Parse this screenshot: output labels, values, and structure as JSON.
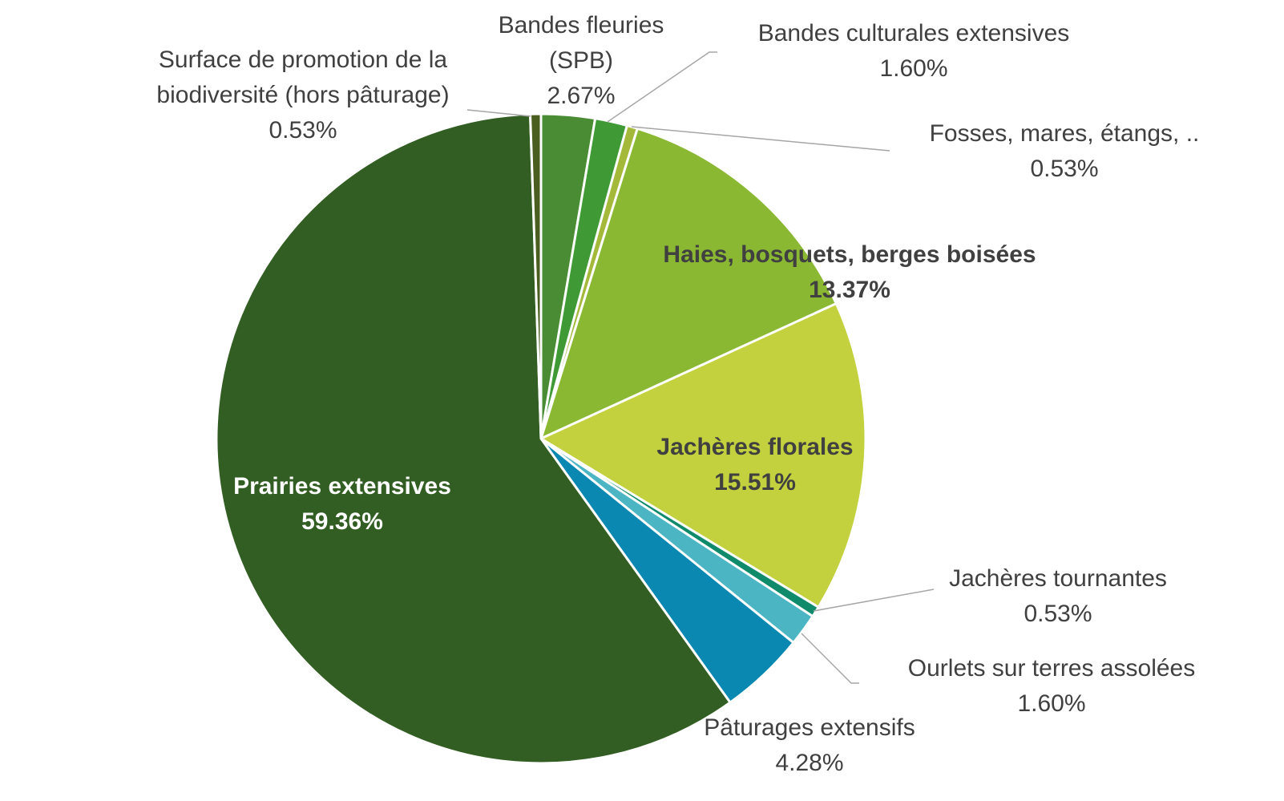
{
  "chart_data": {
    "type": "pie",
    "categories": [
      "Bandes fleuries (SPB)",
      "Bandes culturales extensives",
      "Fosses, mares, étangs, ..",
      "Haies, bosquets, berges boisées",
      "Jachères florales",
      "Jachères tournantes",
      "Ourlets sur terres assolées",
      "Pâturages extensifs",
      "Prairies extensives",
      "Surface de promotion de la biodiversité (hors pâturage)"
    ],
    "values": [
      2.67,
      1.6,
      0.53,
      13.37,
      15.51,
      0.53,
      1.6,
      4.28,
      59.36,
      0.53
    ],
    "value_labels": [
      "2.67%",
      "1.60%",
      "0.53%",
      "13.37%",
      "15.51%",
      "0.53%",
      "1.60%",
      "4.28%",
      "59.36%",
      "0.53%"
    ],
    "colors": [
      "#4a8c34",
      "#3f9a35",
      "#a4b93a",
      "#8ab833",
      "#c2d13d",
      "#0f8a6a",
      "#4bb5c4",
      "#0a88b2",
      "#335e23",
      "#4a5e1f"
    ]
  }
}
